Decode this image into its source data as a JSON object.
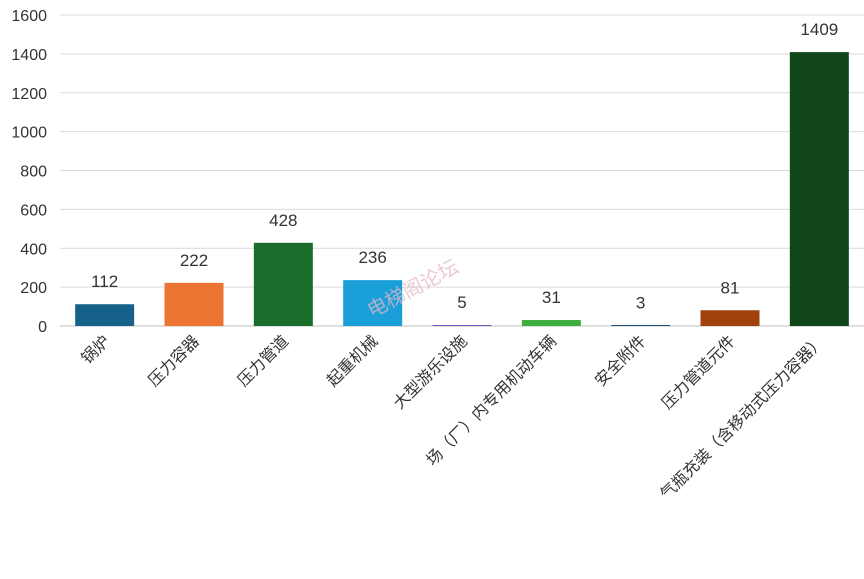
{
  "chart_data": {
    "type": "bar",
    "categories": [
      "锅炉",
      "压力容器",
      "压力管道",
      "起重机械",
      "大型游乐设施",
      "场（厂）内专用机动车辆",
      "安全附件",
      "压力管道元件",
      "气瓶充装（含移动式压力容器）"
    ],
    "values": [
      112,
      222,
      428,
      236,
      5,
      31,
      3,
      81,
      1409
    ],
    "colors": [
      "#16618a",
      "#ec7534",
      "#1a6d2a",
      "#1a9fd9",
      "#7a4fbf",
      "#3cae3e",
      "#1f4f7a",
      "#a0410e",
      "#11461a"
    ],
    "ylim": [
      0,
      1600
    ],
    "yticks": [
      "0",
      "200",
      "400",
      "600",
      "800",
      "1000",
      "1200",
      "1400",
      "1600"
    ],
    "grid": true,
    "legend": "none"
  },
  "watermark": "电梯阁论坛"
}
